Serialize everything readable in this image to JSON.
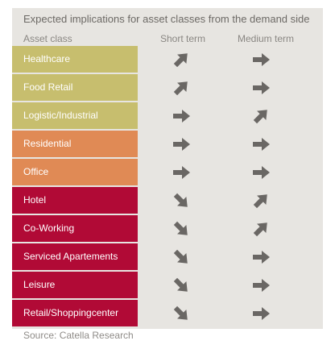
{
  "title": "Expected implications for asset classes from the demand side",
  "headers": {
    "asset": "Asset class",
    "short": "Short term",
    "medium": "Medium term"
  },
  "colors": {
    "group_green": "#c7be6e",
    "group_orange": "#e08a55",
    "group_red": "#b10a36",
    "background": "#e7e5e1",
    "arrow": "#6a6764"
  },
  "rows": [
    {
      "label": "Healthcare",
      "group": "green",
      "short": "up",
      "medium": "right"
    },
    {
      "label": "Food Retail",
      "group": "green",
      "short": "up",
      "medium": "right"
    },
    {
      "label": "Logistic/Industrial",
      "group": "green",
      "short": "right",
      "medium": "up"
    },
    {
      "label": "Residential",
      "group": "orange",
      "short": "right",
      "medium": "right"
    },
    {
      "label": "Office",
      "group": "orange",
      "short": "right",
      "medium": "right"
    },
    {
      "label": "Hotel",
      "group": "red",
      "short": "down",
      "medium": "up"
    },
    {
      "label": "Co-Working",
      "group": "red",
      "short": "down",
      "medium": "up"
    },
    {
      "label": "Serviced Apartements",
      "group": "red",
      "short": "down",
      "medium": "right"
    },
    {
      "label": "Leisure",
      "group": "red",
      "short": "down",
      "medium": "right"
    },
    {
      "label": "Retail/Shoppingcenter",
      "group": "red",
      "short": "down",
      "medium": "right"
    }
  ],
  "source": "Source: Catella Research"
}
